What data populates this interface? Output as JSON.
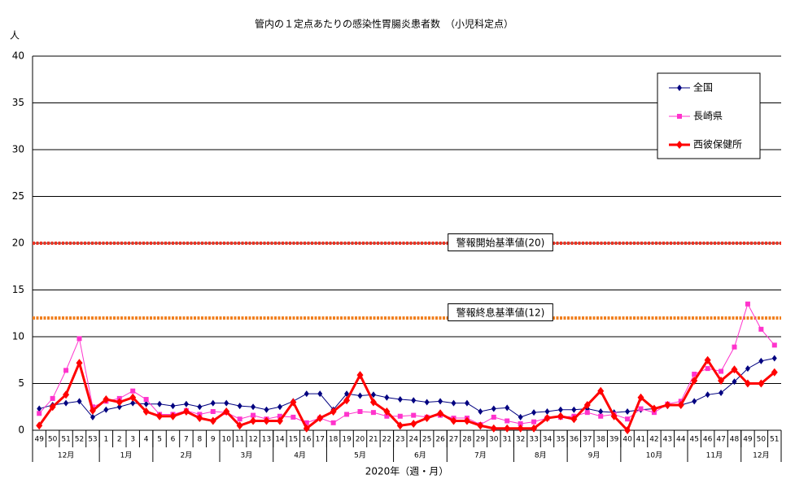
{
  "chart_data": {
    "type": "line",
    "title": "管内の１定点あたりの感染性胃腸炎患者数　（小児科定点）",
    "y_unit": "人",
    "x_label": "2020年（週・月）",
    "categories": [
      "49",
      "50",
      "51",
      "52",
      "53",
      "1",
      "2",
      "3",
      "4",
      "5",
      "6",
      "7",
      "8",
      "9",
      "10",
      "11",
      "12",
      "13",
      "14",
      "15",
      "16",
      "17",
      "18",
      "19",
      "20",
      "21",
      "22",
      "23",
      "24",
      "25",
      "26",
      "27",
      "28",
      "29",
      "30",
      "31",
      "32",
      "33",
      "34",
      "35",
      "36",
      "37",
      "38",
      "39",
      "40",
      "41",
      "42",
      "43",
      "44",
      "45",
      "46",
      "47",
      "48",
      "49",
      "50",
      "51"
    ],
    "x_groups": [
      "12月",
      "12月",
      "12月",
      "12月",
      "12月",
      "1月",
      "1月",
      "1月",
      "1月",
      "2月",
      "2月",
      "2月",
      "2月",
      "2月",
      "3月",
      "3月",
      "3月",
      "3月",
      "4月",
      "4月",
      "4月",
      "4月",
      "5月",
      "5月",
      "5月",
      "5月",
      "5月",
      "6月",
      "6月",
      "6月",
      "6月",
      "7月",
      "7月",
      "7月",
      "7月",
      "7月",
      "8月",
      "8月",
      "8月",
      "8月",
      "9月",
      "9月",
      "9月",
      "9月",
      "10月",
      "10月",
      "10月",
      "10月",
      "10月",
      "11月",
      "11月",
      "11月",
      "11月",
      "12月",
      "12月",
      "12月"
    ],
    "series": [
      {
        "name": "全国",
        "color": "#000080",
        "marker": "diamond",
        "width": 1,
        "values": [
          2.3,
          2.7,
          2.9,
          3.1,
          1.4,
          2.2,
          2.5,
          2.9,
          2.8,
          2.8,
          2.6,
          2.8,
          2.5,
          2.9,
          2.9,
          2.6,
          2.5,
          2.2,
          2.5,
          3.1,
          3.9,
          3.9,
          2.2,
          3.9,
          3.7,
          3.8,
          3.5,
          3.3,
          3.2,
          3.0,
          3.1,
          2.9,
          2.9,
          2.0,
          2.3,
          2.4,
          1.4,
          1.9,
          2.0,
          2.2,
          2.2,
          2.3,
          2.0,
          1.9,
          2.0,
          2.2,
          2.3,
          2.6,
          2.7,
          3.1,
          3.8,
          4.0,
          5.2,
          6.6,
          7.4,
          7.7
        ]
      },
      {
        "name": "長崎県",
        "color": "#ff33cc",
        "marker": "square",
        "width": 1,
        "values": [
          1.8,
          3.4,
          6.4,
          9.8,
          2.5,
          3.1,
          3.4,
          4.2,
          3.3,
          1.7,
          1.7,
          2.1,
          1.7,
          2.0,
          1.9,
          1.2,
          1.6,
          1.2,
          1.5,
          1.4,
          0.8,
          1.3,
          0.8,
          1.7,
          2.0,
          1.9,
          1.5,
          1.5,
          1.6,
          1.4,
          1.6,
          1.3,
          1.3,
          0.6,
          1.4,
          1.0,
          0.7,
          0.9,
          1.3,
          1.4,
          1.5,
          1.9,
          1.5,
          1.7,
          1.2,
          2.3,
          1.9,
          2.8,
          3.1,
          6.0,
          6.6,
          6.3,
          8.9,
          13.5,
          10.8,
          9.1
        ]
      },
      {
        "name": "西彼保健所",
        "color": "#ff0000",
        "marker": "diamond",
        "width": 3,
        "values": [
          0.5,
          2.5,
          3.8,
          7.2,
          2.1,
          3.3,
          3.0,
          3.5,
          2.0,
          1.5,
          1.5,
          2.0,
          1.3,
          1.0,
          2.0,
          0.5,
          1.0,
          1.0,
          1.0,
          3.0,
          0.2,
          1.3,
          2.0,
          3.2,
          5.9,
          3.0,
          2.0,
          0.5,
          0.7,
          1.3,
          1.8,
          1.0,
          1.0,
          0.5,
          0.2,
          0.2,
          0.2,
          0.2,
          1.3,
          1.5,
          1.2,
          2.7,
          4.2,
          1.5,
          0,
          3.5,
          2.3,
          2.7,
          2.7,
          5.3,
          7.5,
          5.3,
          6.5,
          5.0,
          5.0,
          6.2
        ]
      }
    ],
    "reference_lines": [
      {
        "value": 20,
        "label": "警報開始基準値(20)",
        "color": "#ee3322"
      },
      {
        "value": 12,
        "label": "警報終息基準値(12)",
        "color": "#f08020"
      }
    ],
    "ylim": [
      0,
      40
    ],
    "yticks": [
      0,
      5,
      10,
      15,
      20,
      25,
      30,
      35,
      40
    ],
    "grid": true,
    "legend": "upper right"
  }
}
